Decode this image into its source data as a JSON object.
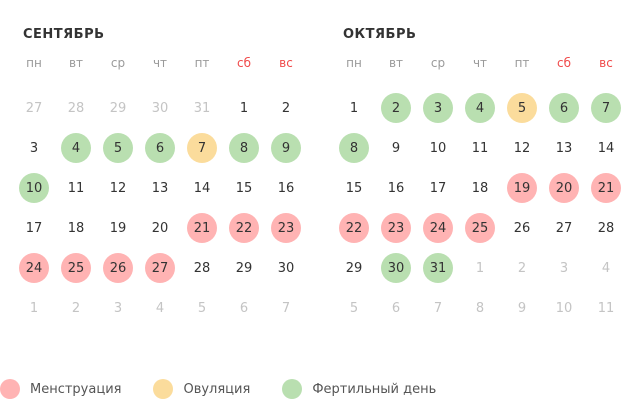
{
  "colors": {
    "menstruation": "#ffb3b3",
    "ovulation": "#fbdc9c",
    "fertile": "#b9dfb0",
    "weekend_label": "#f04a4a",
    "muted_day": "#c4c4c4"
  },
  "weekdays": [
    "пн",
    "вт",
    "ср",
    "чт",
    "пт",
    "сб",
    "вс"
  ],
  "months": [
    {
      "title": "СЕНТЯБРЬ",
      "weeks": [
        [
          {
            "d": "27",
            "t": "muted"
          },
          {
            "d": "28",
            "t": "muted"
          },
          {
            "d": "29",
            "t": "muted"
          },
          {
            "d": "30",
            "t": "muted"
          },
          {
            "d": "31",
            "t": "muted"
          },
          {
            "d": "1",
            "t": ""
          },
          {
            "d": "2",
            "t": ""
          }
        ],
        [
          {
            "d": "3",
            "t": ""
          },
          {
            "d": "4",
            "t": "fertile"
          },
          {
            "d": "5",
            "t": "fertile"
          },
          {
            "d": "6",
            "t": "fertile"
          },
          {
            "d": "7",
            "t": "ovulation"
          },
          {
            "d": "8",
            "t": "fertile"
          },
          {
            "d": "9",
            "t": "fertile"
          }
        ],
        [
          {
            "d": "10",
            "t": "fertile"
          },
          {
            "d": "11",
            "t": ""
          },
          {
            "d": "12",
            "t": ""
          },
          {
            "d": "13",
            "t": ""
          },
          {
            "d": "14",
            "t": ""
          },
          {
            "d": "15",
            "t": ""
          },
          {
            "d": "16",
            "t": ""
          }
        ],
        [
          {
            "d": "17",
            "t": ""
          },
          {
            "d": "18",
            "t": ""
          },
          {
            "d": "19",
            "t": ""
          },
          {
            "d": "20",
            "t": ""
          },
          {
            "d": "21",
            "t": "menstruation"
          },
          {
            "d": "22",
            "t": "menstruation"
          },
          {
            "d": "23",
            "t": "menstruation"
          }
        ],
        [
          {
            "d": "24",
            "t": "menstruation"
          },
          {
            "d": "25",
            "t": "menstruation"
          },
          {
            "d": "26",
            "t": "menstruation"
          },
          {
            "d": "27",
            "t": "menstruation"
          },
          {
            "d": "28",
            "t": ""
          },
          {
            "d": "29",
            "t": ""
          },
          {
            "d": "30",
            "t": ""
          }
        ],
        [
          {
            "d": "1",
            "t": "muted"
          },
          {
            "d": "2",
            "t": "muted"
          },
          {
            "d": "3",
            "t": "muted"
          },
          {
            "d": "4",
            "t": "muted"
          },
          {
            "d": "5",
            "t": "muted"
          },
          {
            "d": "6",
            "t": "muted"
          },
          {
            "d": "7",
            "t": "muted"
          }
        ]
      ]
    },
    {
      "title": "ОКТЯБРЬ",
      "weeks": [
        [
          {
            "d": "1",
            "t": ""
          },
          {
            "d": "2",
            "t": "fertile"
          },
          {
            "d": "3",
            "t": "fertile"
          },
          {
            "d": "4",
            "t": "fertile"
          },
          {
            "d": "5",
            "t": "ovulation"
          },
          {
            "d": "6",
            "t": "fertile"
          },
          {
            "d": "7",
            "t": "fertile"
          }
        ],
        [
          {
            "d": "8",
            "t": "fertile"
          },
          {
            "d": "9",
            "t": ""
          },
          {
            "d": "10",
            "t": ""
          },
          {
            "d": "11",
            "t": ""
          },
          {
            "d": "12",
            "t": ""
          },
          {
            "d": "13",
            "t": ""
          },
          {
            "d": "14",
            "t": ""
          }
        ],
        [
          {
            "d": "15",
            "t": ""
          },
          {
            "d": "16",
            "t": ""
          },
          {
            "d": "17",
            "t": ""
          },
          {
            "d": "18",
            "t": ""
          },
          {
            "d": "19",
            "t": "menstruation"
          },
          {
            "d": "20",
            "t": "menstruation"
          },
          {
            "d": "21",
            "t": "menstruation"
          }
        ],
        [
          {
            "d": "22",
            "t": "menstruation"
          },
          {
            "d": "23",
            "t": "menstruation"
          },
          {
            "d": "24",
            "t": "menstruation"
          },
          {
            "d": "25",
            "t": "menstruation"
          },
          {
            "d": "26",
            "t": ""
          },
          {
            "d": "27",
            "t": ""
          },
          {
            "d": "28",
            "t": ""
          }
        ],
        [
          {
            "d": "29",
            "t": ""
          },
          {
            "d": "30",
            "t": "fertile"
          },
          {
            "d": "31",
            "t": "fertile"
          },
          {
            "d": "1",
            "t": "muted"
          },
          {
            "d": "2",
            "t": "muted"
          },
          {
            "d": "3",
            "t": "muted"
          },
          {
            "d": "4",
            "t": "muted"
          }
        ],
        [
          {
            "d": "5",
            "t": "muted"
          },
          {
            "d": "6",
            "t": "muted"
          },
          {
            "d": "7",
            "t": "muted"
          },
          {
            "d": "8",
            "t": "muted"
          },
          {
            "d": "9",
            "t": "muted"
          },
          {
            "d": "10",
            "t": "muted"
          },
          {
            "d": "11",
            "t": "muted"
          }
        ]
      ]
    }
  ],
  "legend": [
    {
      "label": "Менструация",
      "type": "menstruation"
    },
    {
      "label": "Овуляция",
      "type": "ovulation"
    },
    {
      "label": "Фертильный день",
      "type": "fertile"
    }
  ]
}
